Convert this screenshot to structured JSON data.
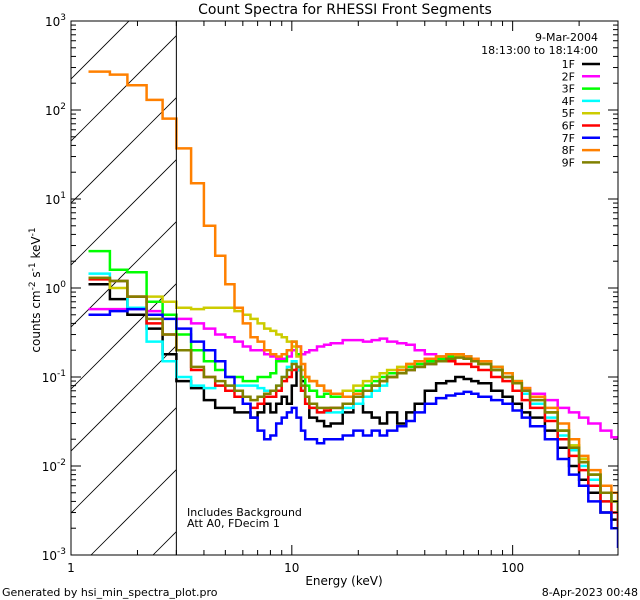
{
  "chart_data": {
    "type": "line",
    "title": "Count Spectra for RHESSI Front Segments",
    "xlabel": "Energy (keV)",
    "ylabel": "counts cm^-2 s^-1 keV^-1",
    "ylabel_parts": {
      "base": "counts cm",
      "e1": "-2",
      "mid1": " s",
      "e2": "-1",
      "mid2": " keV",
      "e3": "-1"
    },
    "xscale": "log",
    "yscale": "log",
    "xlim": [
      1,
      300
    ],
    "ylim": [
      0.001,
      1000
    ],
    "x_ticks": [
      {
        "value": 1,
        "label": "1"
      },
      {
        "value": 10,
        "label": "10"
      },
      {
        "value": 100,
        "label": "100"
      }
    ],
    "y_ticks": [
      {
        "value": 0.001,
        "base": "10",
        "exp": "-3"
      },
      {
        "value": 0.01,
        "base": "10",
        "exp": "-2"
      },
      {
        "value": 0.1,
        "base": "10",
        "exp": "-1"
      },
      {
        "value": 1,
        "base": "10",
        "exp": "0"
      },
      {
        "value": 10,
        "base": "10",
        "exp": "1"
      },
      {
        "value": 100,
        "base": "10",
        "exp": "2"
      },
      {
        "value": 1000,
        "base": "10",
        "exp": "3"
      }
    ],
    "hatched_region": {
      "from_keV": 1,
      "to_keV": 3
    },
    "legend": {
      "position": "top-right",
      "date": "9-Mar-2004",
      "time_range": "18:13:00 to 18:14:00"
    },
    "annotations": [
      "Includes Background",
      "Att A0, FDecim 1"
    ],
    "series": [
      {
        "name": "1F",
        "color": "#000000",
        "x": [
          1.2,
          1.5,
          1.8,
          2.2,
          2.6,
          3.0,
          3.5,
          4.0,
          4.5,
          5,
          5.5,
          6,
          6.5,
          7,
          7.5,
          8,
          8.5,
          9,
          9.5,
          10,
          10.5,
          11,
          11.5,
          12,
          13,
          14,
          15,
          17,
          19,
          21,
          23,
          25,
          27,
          30,
          33,
          36,
          40,
          45,
          50,
          55,
          60,
          65,
          70,
          80,
          90,
          100,
          110,
          120,
          140,
          160,
          180,
          200,
          220,
          250,
          280,
          300
        ],
        "y": [
          1.1,
          0.75,
          0.5,
          0.35,
          0.18,
          0.09,
          0.075,
          0.055,
          0.045,
          0.045,
          0.04,
          0.04,
          0.035,
          0.04,
          0.05,
          0.04,
          0.05,
          0.06,
          0.05,
          0.08,
          0.12,
          0.09,
          0.05,
          0.035,
          0.032,
          0.028,
          0.03,
          0.04,
          0.05,
          0.04,
          0.035,
          0.03,
          0.04,
          0.03,
          0.04,
          0.05,
          0.07,
          0.085,
          0.09,
          0.1,
          0.095,
          0.09,
          0.085,
          0.07,
          0.06,
          0.05,
          0.04,
          0.035,
          0.025,
          0.016,
          0.01,
          0.007,
          0.005,
          0.003,
          0.0025,
          0.002
        ]
      },
      {
        "name": "2F",
        "color": "#ff00ff",
        "x": [
          1.2,
          1.5,
          1.8,
          2.2,
          2.6,
          3.0,
          3.5,
          4.0,
          4.5,
          5,
          5.5,
          6,
          6.5,
          7,
          7.5,
          8,
          8.5,
          9,
          9.5,
          10,
          10.5,
          11,
          11.5,
          12,
          13,
          14,
          15,
          17,
          19,
          21,
          23,
          25,
          27,
          30,
          33,
          36,
          40,
          45,
          50,
          55,
          60,
          65,
          70,
          80,
          90,
          100,
          110,
          120,
          140,
          160,
          180,
          200,
          220,
          250,
          280,
          300
        ],
        "y": [
          0.58,
          0.58,
          0.58,
          0.55,
          0.5,
          0.45,
          0.4,
          0.35,
          0.3,
          0.28,
          0.25,
          0.22,
          0.2,
          0.2,
          0.18,
          0.17,
          0.16,
          0.16,
          0.17,
          0.2,
          0.22,
          0.18,
          0.19,
          0.2,
          0.22,
          0.23,
          0.24,
          0.26,
          0.26,
          0.25,
          0.26,
          0.27,
          0.25,
          0.24,
          0.23,
          0.2,
          0.18,
          0.17,
          0.17,
          0.18,
          0.17,
          0.16,
          0.15,
          0.12,
          0.1,
          0.085,
          0.075,
          0.065,
          0.055,
          0.045,
          0.04,
          0.035,
          0.03,
          0.025,
          0.021,
          0.02
        ]
      },
      {
        "name": "3F",
        "color": "#00ff00",
        "x": [
          1.2,
          1.5,
          1.8,
          2.2,
          2.6,
          3.0,
          3.5,
          4.0,
          4.5,
          5,
          5.5,
          6,
          6.5,
          7,
          7.5,
          8,
          8.5,
          9,
          9.5,
          10,
          10.5,
          11,
          11.5,
          12,
          13,
          14,
          15,
          17,
          19,
          21,
          23,
          25,
          27,
          30,
          33,
          36,
          40,
          45,
          50,
          55,
          60,
          65,
          70,
          80,
          90,
          100,
          110,
          120,
          140,
          160,
          180,
          200,
          220,
          250,
          280,
          300
        ],
        "y": [
          2.6,
          1.6,
          1.5,
          0.7,
          0.5,
          0.3,
          0.2,
          0.15,
          0.12,
          0.1,
          0.1,
          0.09,
          0.09,
          0.1,
          0.1,
          0.11,
          0.15,
          0.15,
          0.2,
          0.25,
          0.18,
          0.1,
          0.08,
          0.07,
          0.06,
          0.065,
          0.06,
          0.06,
          0.07,
          0.08,
          0.09,
          0.1,
          0.11,
          0.12,
          0.13,
          0.14,
          0.15,
          0.16,
          0.17,
          0.18,
          0.17,
          0.16,
          0.15,
          0.13,
          0.11,
          0.09,
          0.07,
          0.06,
          0.04,
          0.025,
          0.017,
          0.012,
          0.008,
          0.005,
          0.004,
          0.003
        ]
      },
      {
        "name": "4F",
        "color": "#00ffff",
        "x": [
          1.2,
          1.5,
          1.8,
          2.2,
          2.6,
          3.0,
          3.5,
          4.0,
          4.5,
          5,
          5.5,
          6,
          6.5,
          7,
          7.5,
          8,
          8.5,
          9,
          9.5,
          10,
          10.5,
          11,
          11.5,
          12,
          13,
          14,
          15,
          17,
          19,
          21,
          23,
          25,
          27,
          30,
          33,
          36,
          40,
          45,
          50,
          55,
          60,
          65,
          70,
          80,
          90,
          100,
          110,
          120,
          140,
          160,
          180,
          200,
          220,
          250,
          280,
          300
        ],
        "y": [
          1.45,
          1.2,
          0.6,
          0.25,
          0.15,
          0.1,
          0.08,
          0.075,
          0.08,
          0.08,
          0.08,
          0.08,
          0.08,
          0.075,
          0.07,
          0.07,
          0.08,
          0.1,
          0.13,
          0.15,
          0.12,
          0.07,
          0.05,
          0.045,
          0.04,
          0.04,
          0.04,
          0.045,
          0.05,
          0.06,
          0.07,
          0.08,
          0.1,
          0.11,
          0.12,
          0.13,
          0.14,
          0.15,
          0.16,
          0.17,
          0.16,
          0.15,
          0.14,
          0.12,
          0.1,
          0.085,
          0.065,
          0.05,
          0.035,
          0.022,
          0.015,
          0.01,
          0.007,
          0.004,
          0.003,
          0.002
        ]
      },
      {
        "name": "5F",
        "color": "#cccc00",
        "x": [
          1.2,
          1.5,
          1.8,
          2.2,
          2.6,
          3.0,
          3.5,
          4.0,
          4.5,
          5,
          5.5,
          6,
          6.5,
          7,
          7.5,
          8,
          8.5,
          9,
          9.5,
          10,
          10.5,
          11,
          11.5,
          12,
          13,
          14,
          15,
          17,
          19,
          21,
          23,
          25,
          27,
          30,
          33,
          36,
          40,
          45,
          50,
          55,
          60,
          65,
          70,
          80,
          90,
          100,
          110,
          120,
          140,
          160,
          180,
          200,
          220,
          250,
          280,
          300
        ],
        "y": [
          1.3,
          1.0,
          0.8,
          0.8,
          0.7,
          0.6,
          0.58,
          0.6,
          0.6,
          0.6,
          0.55,
          0.5,
          0.45,
          0.4,
          0.35,
          0.33,
          0.3,
          0.28,
          0.25,
          0.22,
          0.17,
          0.12,
          0.1,
          0.09,
          0.08,
          0.07,
          0.065,
          0.07,
          0.08,
          0.09,
          0.1,
          0.11,
          0.12,
          0.13,
          0.14,
          0.15,
          0.16,
          0.17,
          0.18,
          0.17,
          0.16,
          0.15,
          0.14,
          0.12,
          0.1,
          0.085,
          0.07,
          0.055,
          0.04,
          0.025,
          0.017,
          0.012,
          0.008,
          0.005,
          0.004,
          0.003
        ]
      },
      {
        "name": "6F",
        "color": "#ff0000",
        "x": [
          1.2,
          1.5,
          1.8,
          2.2,
          2.6,
          3.0,
          3.5,
          4.0,
          4.5,
          5,
          5.5,
          6,
          6.5,
          7,
          7.5,
          8,
          8.5,
          9,
          9.5,
          10,
          10.5,
          11,
          11.5,
          12,
          13,
          14,
          15,
          17,
          19,
          21,
          23,
          25,
          27,
          30,
          33,
          36,
          40,
          45,
          50,
          55,
          60,
          65,
          70,
          80,
          90,
          100,
          110,
          120,
          140,
          160,
          180,
          200,
          220,
          250,
          280,
          300
        ],
        "y": [
          1.25,
          1.2,
          0.8,
          0.4,
          0.3,
          0.2,
          0.12,
          0.1,
          0.08,
          0.07,
          0.06,
          0.05,
          0.045,
          0.05,
          0.06,
          0.06,
          0.07,
          0.09,
          0.1,
          0.12,
          0.13,
          0.07,
          0.05,
          0.045,
          0.04,
          0.042,
          0.045,
          0.05,
          0.06,
          0.07,
          0.08,
          0.09,
          0.1,
          0.11,
          0.12,
          0.13,
          0.14,
          0.15,
          0.15,
          0.14,
          0.14,
          0.13,
          0.12,
          0.1,
          0.09,
          0.07,
          0.055,
          0.045,
          0.032,
          0.02,
          0.013,
          0.009,
          0.006,
          0.004,
          0.003,
          0.002
        ]
      },
      {
        "name": "7F",
        "color": "#0000ff",
        "x": [
          1.2,
          1.5,
          1.8,
          2.2,
          2.6,
          3.0,
          3.5,
          4.0,
          4.5,
          5,
          5.5,
          6,
          6.5,
          7,
          7.5,
          8,
          8.5,
          9,
          9.5,
          10,
          10.5,
          11,
          11.5,
          12,
          13,
          14,
          15,
          17,
          19,
          21,
          23,
          25,
          27,
          30,
          33,
          36,
          40,
          45,
          50,
          55,
          60,
          65,
          70,
          80,
          90,
          100,
          110,
          120,
          140,
          160,
          180,
          200,
          220,
          250,
          280,
          300
        ],
        "y": [
          0.5,
          0.55,
          0.58,
          0.5,
          0.45,
          0.35,
          0.25,
          0.2,
          0.15,
          0.1,
          0.07,
          0.05,
          0.035,
          0.025,
          0.02,
          0.022,
          0.03,
          0.035,
          0.04,
          0.045,
          0.035,
          0.025,
          0.02,
          0.02,
          0.018,
          0.02,
          0.02,
          0.022,
          0.025,
          0.022,
          0.025,
          0.022,
          0.025,
          0.028,
          0.032,
          0.04,
          0.05,
          0.058,
          0.062,
          0.065,
          0.068,
          0.065,
          0.06,
          0.055,
          0.05,
          0.042,
          0.035,
          0.028,
          0.02,
          0.012,
          0.008,
          0.006,
          0.004,
          0.003,
          0.002,
          0.0012
        ]
      },
      {
        "name": "8F",
        "color": "#ff8000",
        "x": [
          1.2,
          1.5,
          1.8,
          2.2,
          2.6,
          3.0,
          3.5,
          4.0,
          4.5,
          5,
          5.5,
          6,
          6.5,
          7,
          7.5,
          8,
          8.5,
          9,
          9.5,
          10,
          10.5,
          11,
          11.5,
          12,
          13,
          14,
          15,
          17,
          19,
          21,
          23,
          25,
          27,
          30,
          33,
          36,
          40,
          45,
          50,
          55,
          60,
          65,
          70,
          80,
          90,
          100,
          110,
          120,
          140,
          160,
          180,
          200,
          220,
          250,
          280,
          300
        ],
        "y": [
          270,
          250,
          190,
          130,
          80,
          37,
          15,
          5,
          2.3,
          1.1,
          0.6,
          0.4,
          0.28,
          0.25,
          0.2,
          0.18,
          0.17,
          0.18,
          0.2,
          0.25,
          0.22,
          0.14,
          0.1,
          0.09,
          0.08,
          0.07,
          0.065,
          0.06,
          0.065,
          0.07,
          0.08,
          0.09,
          0.1,
          0.12,
          0.14,
          0.15,
          0.16,
          0.17,
          0.18,
          0.18,
          0.17,
          0.16,
          0.15,
          0.13,
          0.11,
          0.09,
          0.075,
          0.06,
          0.045,
          0.03,
          0.02,
          0.013,
          0.009,
          0.006,
          0.005,
          0.004
        ]
      },
      {
        "name": "9F",
        "color": "#808000",
        "x": [
          1.2,
          1.5,
          1.8,
          2.2,
          2.6,
          3.0,
          3.5,
          4.0,
          4.5,
          5,
          5.5,
          6,
          6.5,
          7,
          7.5,
          8,
          8.5,
          9,
          9.5,
          10,
          10.5,
          11,
          11.5,
          12,
          13,
          14,
          15,
          17,
          19,
          21,
          23,
          25,
          27,
          30,
          33,
          36,
          40,
          45,
          50,
          55,
          60,
          65,
          70,
          80,
          90,
          100,
          110,
          120,
          140,
          160,
          180,
          200,
          220,
          250,
          280,
          300
        ],
        "y": [
          1.3,
          1.2,
          0.8,
          0.45,
          0.3,
          0.2,
          0.13,
          0.1,
          0.09,
          0.08,
          0.07,
          0.06,
          0.055,
          0.06,
          0.065,
          0.07,
          0.08,
          0.1,
          0.12,
          0.14,
          0.13,
          0.08,
          0.06,
          0.05,
          0.045,
          0.045,
          0.045,
          0.05,
          0.06,
          0.07,
          0.08,
          0.09,
          0.1,
          0.11,
          0.12,
          0.13,
          0.14,
          0.15,
          0.16,
          0.165,
          0.16,
          0.15,
          0.14,
          0.12,
          0.1,
          0.085,
          0.07,
          0.055,
          0.04,
          0.025,
          0.016,
          0.011,
          0.008,
          0.005,
          0.004,
          0.003
        ]
      }
    ]
  },
  "footer": {
    "generated_by": "Generated by hsi_min_spectra_plot.pro",
    "timestamp": "8-Apr-2023 00:48"
  }
}
